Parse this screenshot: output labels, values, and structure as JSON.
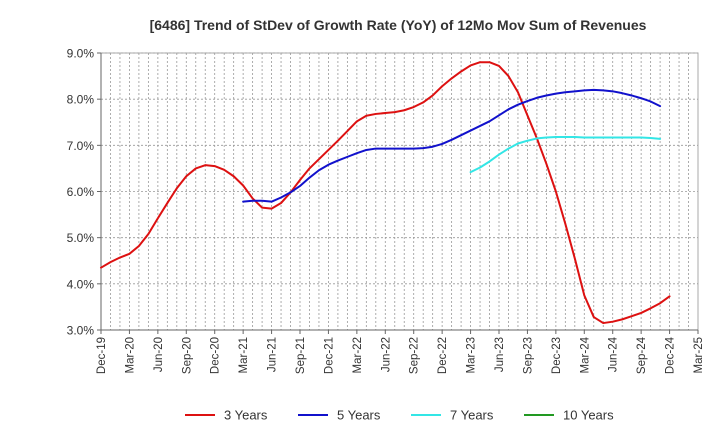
{
  "chart_data": {
    "type": "line",
    "title": "[6486]  Trend of StDev of Growth Rate (YoY) of 12Mo Mov Sum of Revenues",
    "xlabel": "",
    "ylabel": "",
    "ylim": [
      3.0,
      9.0
    ],
    "yticks": [
      3.0,
      4.0,
      5.0,
      6.0,
      7.0,
      8.0,
      9.0
    ],
    "ytick_labels": [
      "3.0%",
      "4.0%",
      "5.0%",
      "6.0%",
      "7.0%",
      "8.0%",
      "9.0%"
    ],
    "x_start": "Dec-19",
    "x_end": "Mar-25",
    "xtick_labels": [
      "Dec-19",
      "Mar-20",
      "Jun-20",
      "Sep-20",
      "Dec-20",
      "Mar-21",
      "Jun-21",
      "Sep-21",
      "Dec-21",
      "Mar-22",
      "Jun-22",
      "Sep-22",
      "Dec-22",
      "Mar-23",
      "Jun-23",
      "Sep-23",
      "Dec-23",
      "Mar-24",
      "Jun-24",
      "Sep-24",
      "Dec-24",
      "Mar-25"
    ],
    "grid": true,
    "legend_position": "bottom",
    "series": [
      {
        "name": "3 Years",
        "color": "#dd1111",
        "start_month_index": 0,
        "values": [
          4.35,
          4.47,
          4.57,
          4.65,
          4.82,
          5.08,
          5.42,
          5.75,
          6.07,
          6.33,
          6.5,
          6.57,
          6.55,
          6.47,
          6.33,
          6.13,
          5.85,
          5.65,
          5.63,
          5.75,
          5.98,
          6.25,
          6.5,
          6.7,
          6.9,
          7.1,
          7.31,
          7.52,
          7.64,
          7.68,
          7.7,
          7.72,
          7.76,
          7.83,
          7.93,
          8.08,
          8.28,
          8.45,
          8.6,
          8.73,
          8.8,
          8.8,
          8.72,
          8.5,
          8.15,
          7.65,
          7.15,
          6.6,
          6.0,
          5.3,
          4.55,
          3.75,
          3.28,
          3.15,
          3.18,
          3.23,
          3.3,
          3.37,
          3.47,
          3.58,
          3.73
        ]
      },
      {
        "name": "5 Years",
        "color": "#1111cc",
        "start_month_index": 15,
        "values": [
          5.78,
          5.8,
          5.8,
          5.78,
          5.87,
          5.98,
          6.12,
          6.3,
          6.46,
          6.58,
          6.67,
          6.75,
          6.83,
          6.9,
          6.93,
          6.93,
          6.93,
          6.93,
          6.93,
          6.94,
          6.97,
          7.03,
          7.12,
          7.22,
          7.32,
          7.42,
          7.52,
          7.65,
          7.78,
          7.88,
          7.96,
          8.03,
          8.08,
          8.12,
          8.15,
          8.17,
          8.19,
          8.2,
          8.19,
          8.17,
          8.13,
          8.08,
          8.02,
          7.95,
          7.85
        ]
      },
      {
        "name": "7 Years",
        "color": "#33e6e6",
        "start_month_index": 39,
        "values": [
          6.42,
          6.52,
          6.65,
          6.8,
          6.93,
          7.04,
          7.1,
          7.15,
          7.17,
          7.18,
          7.18,
          7.18,
          7.17,
          7.17,
          7.17,
          7.17,
          7.17,
          7.17,
          7.17,
          7.16,
          7.14
        ]
      },
      {
        "name": "10 Years",
        "color": "#229922",
        "start_month_index": 0,
        "values": []
      }
    ]
  }
}
